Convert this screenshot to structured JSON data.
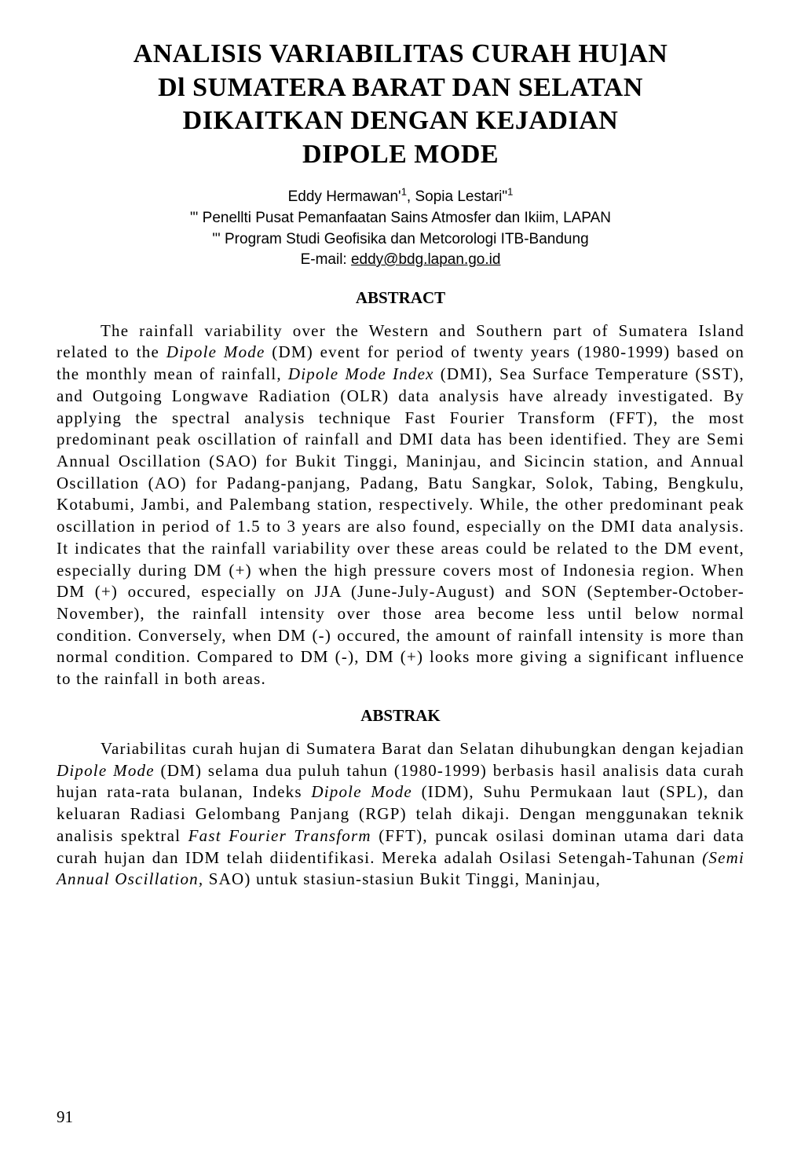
{
  "title": {
    "line1": "ANALISIS VARIABILITAS CURAH HU]AN",
    "line2": "Dl SUMATERA BARAT DAN SELATAN",
    "line3": "DIKAITKAN DENGAN KEJADIAN",
    "line4": "DIPOLE MODE"
  },
  "authors": {
    "line1_pre": "Eddy Hermawan'",
    "line1_sup1": "1",
    "line1_mid": ", Sopia Lestari\"",
    "line1_sup2": "1",
    "affil1": "\"' Penellti Pusat Pemanfaatan Sains Atmosfer dan Ikiim, LAPAN",
    "affil2": "\"' Program Studi Geofisika dan Metcorologi ITB-Bandung",
    "email_label": "E-mail: ",
    "email": "eddy@bdg.lapan.go.id"
  },
  "abstract": {
    "heading": "ABSTRACT",
    "p1_a": "The rainfall variability over the Western and Southern part of Sumatera Island related to the ",
    "p1_b_italic": "Dipole Mode",
    "p1_c": " (DM) event for period of twenty years (1980-1999) based on the monthly mean of rainfall, ",
    "p1_d_italic": "Dipole Mode Index",
    "p1_e": " (DMI), Sea Surface Temperature (SST), and Outgoing Longwave Radiation (OLR) data analysis have already investigated. By applying the spectral analysis technique Fast Fourier Transform (FFT), the most predominant peak oscillation of rainfall and DMI data has been identified. They are Semi Annual Oscillation (SAO) for Bukit Tinggi, Maninjau, and Sicincin station, and Annual Oscillation (AO) for Padang-panjang, Padang, Batu Sangkar, Solok, Tabing, Bengkulu, Kotabumi, Jambi, and Palembang station, respectively. While, the other predominant peak oscillation in period of 1.5 to 3 years are also found, especially on the DMI data analysis. It indicates that the rainfall variability over these areas could be related to the DM event, especially during DM (+) when the high pressure covers most of Indonesia region. When DM (+) occured, especially on JJA (June-July-August) and SON (September-October-November), the rainfall intensity over those area become less until below normal condition. Conversely, when DM (-) occured, the amount of rainfall intensity is more than normal condition. Compared to DM (-), DM (+) looks more giving a significant influence to the rainfall in both areas."
  },
  "abstrak": {
    "heading": "ABSTRAK",
    "p1_a": "Variabilitas curah hujan di Sumatera Barat dan Selatan dihubungkan dengan kejadian ",
    "p1_b_italic": "Dipole Mode",
    "p1_c": " (DM) selama dua puluh tahun (1980-1999) berbasis hasil analisis data curah hujan rata-rata bulanan, Indeks ",
    "p1_d_italic": "Dipole Mode",
    "p1_e": " (IDM), Suhu Permukaan laut (SPL), dan keluaran Radiasi Gelombang Panjang (RGP) telah dikaji. Dengan menggunakan teknik analisis spektral ",
    "p1_f_italic": "Fast Fourier Transform",
    "p1_g": " (FFT), puncak osilasi dominan utama dari data curah hujan dan IDM telah diidentifikasi. Mereka adalah Osilasi Setengah-Tahunan ",
    "p1_h_italic": "(Semi Annual Oscillation,",
    "p1_i": " SAO) untuk stasiun-stasiun Bukit Tinggi, Maninjau,"
  },
  "page_number": "91"
}
